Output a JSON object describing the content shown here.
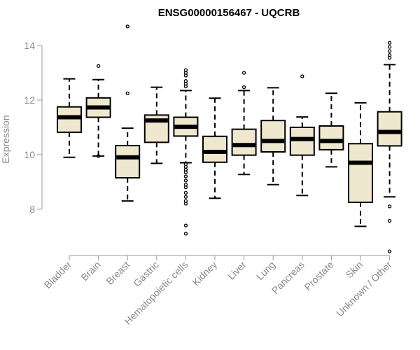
{
  "chart_data": {
    "type": "boxplot",
    "title": "ENSG00000156467 - UQCRB",
    "ylabel": "Expression",
    "xlabel": "",
    "ylim": [
      6.3,
      14.9
    ],
    "yticks": [
      8,
      10,
      12,
      14
    ],
    "grid": false,
    "box_color": "#efe8cf",
    "categories": [
      "Bladder",
      "Brain",
      "Breast",
      "Gastric",
      "Hematopoietic cells",
      "Kidney",
      "Liver",
      "Lung",
      "Pancreas",
      "Prostate",
      "Skin",
      "Unknown / Other"
    ],
    "boxes": [
      {
        "min": 9.9,
        "q1": 10.82,
        "median": 11.37,
        "q3": 11.75,
        "max": 12.78,
        "outliers": []
      },
      {
        "min": 9.95,
        "q1": 11.37,
        "median": 11.73,
        "q3": 12.08,
        "max": 12.75,
        "outliers": [
          13.25,
          9.95
        ]
      },
      {
        "min": 8.3,
        "q1": 9.15,
        "median": 9.9,
        "q3": 10.33,
        "max": 10.97,
        "outliers": [
          14.7,
          12.25
        ]
      },
      {
        "min": 9.68,
        "q1": 10.45,
        "median": 11.25,
        "q3": 11.45,
        "max": 12.47,
        "outliers": []
      },
      {
        "min": 9.7,
        "q1": 10.68,
        "median": 11.02,
        "q3": 11.37,
        "max": 12.35,
        "outliers": [
          13.1,
          13.0,
          12.9,
          12.7,
          12.6,
          12.5,
          9.65,
          9.55,
          9.45,
          9.35,
          9.2,
          9.05,
          8.9,
          8.8,
          8.6,
          8.45,
          8.3,
          8.2,
          7.4,
          7.1
        ]
      },
      {
        "min": 8.4,
        "q1": 9.72,
        "median": 10.1,
        "q3": 10.67,
        "max": 12.07,
        "outliers": []
      },
      {
        "min": 9.27,
        "q1": 9.98,
        "median": 10.35,
        "q3": 10.93,
        "max": 12.35,
        "outliers": [
          13.0,
          12.47
        ]
      },
      {
        "min": 8.9,
        "q1": 10.1,
        "median": 10.5,
        "q3": 11.25,
        "max": 12.45,
        "outliers": []
      },
      {
        "min": 8.5,
        "q1": 9.98,
        "median": 10.57,
        "q3": 11.0,
        "max": 11.38,
        "outliers": [
          12.87
        ]
      },
      {
        "min": 9.55,
        "q1": 10.18,
        "median": 10.5,
        "q3": 11.05,
        "max": 12.25,
        "outliers": []
      },
      {
        "min": 7.37,
        "q1": 8.25,
        "median": 9.7,
        "q3": 10.4,
        "max": 11.9,
        "outliers": []
      },
      {
        "min": 8.45,
        "q1": 10.32,
        "median": 10.83,
        "q3": 11.57,
        "max": 13.3,
        "outliers": [
          14.1,
          13.95,
          13.8,
          13.65,
          13.55,
          8.1,
          7.57,
          6.45
        ]
      }
    ]
  }
}
